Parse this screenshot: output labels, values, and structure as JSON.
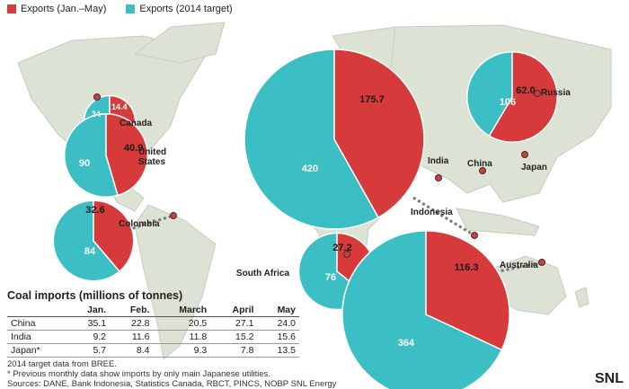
{
  "legend": [
    {
      "label": "Exports (Jan.–May)",
      "color": "#d63a3a"
    },
    {
      "label": "Exports (2014 target)",
      "color": "#3bbfc4"
    }
  ],
  "chart_data": {
    "type": "pie",
    "title": "",
    "colors": {
      "jan_may": "#d63a3a",
      "target": "#3bbfc4"
    },
    "countries": [
      {
        "name": "Canada",
        "jan_may": 14.4,
        "target": 34
      },
      {
        "name": "United States",
        "jan_may": 40.9,
        "target": 90
      },
      {
        "name": "Colombia",
        "jan_may": 32.6,
        "target": 84
      },
      {
        "name": "South Africa",
        "jan_may": 27.2,
        "target": 76
      },
      {
        "name": "Russia",
        "jan_may": 62.0,
        "target": 106
      },
      {
        "name": "Indonesia",
        "jan_may": 175.7,
        "target": 420
      },
      {
        "name": "Australia",
        "jan_may": 116.3,
        "target": 364
      }
    ],
    "import_markers": [
      "India",
      "China",
      "Japan"
    ]
  },
  "imports": {
    "title": "Coal imports (millions of tonnes)",
    "columns": [
      "Jan.",
      "Feb.",
      "March",
      "April",
      "May"
    ],
    "rows": [
      {
        "country": "China",
        "values": [
          "35.1",
          "22.8",
          "20.5",
          "27.1",
          "24.0"
        ]
      },
      {
        "country": "India",
        "values": [
          "9.2",
          "11.6",
          "11.8",
          "15.2",
          "15.6"
        ]
      },
      {
        "country": "Japan*",
        "values": [
          "5.7",
          "8.4",
          "9.3",
          "7.8",
          "13.5"
        ]
      }
    ]
  },
  "notes": [
    "2014 target data from BREE.",
    "* Previous monthly data show imports by only main Japanese utilities.",
    "Sources: DANE, Bank Indonesia, Statistics Canada, RBCT, PINCS, NOBP SNL Energy"
  ],
  "logo": "SNL"
}
